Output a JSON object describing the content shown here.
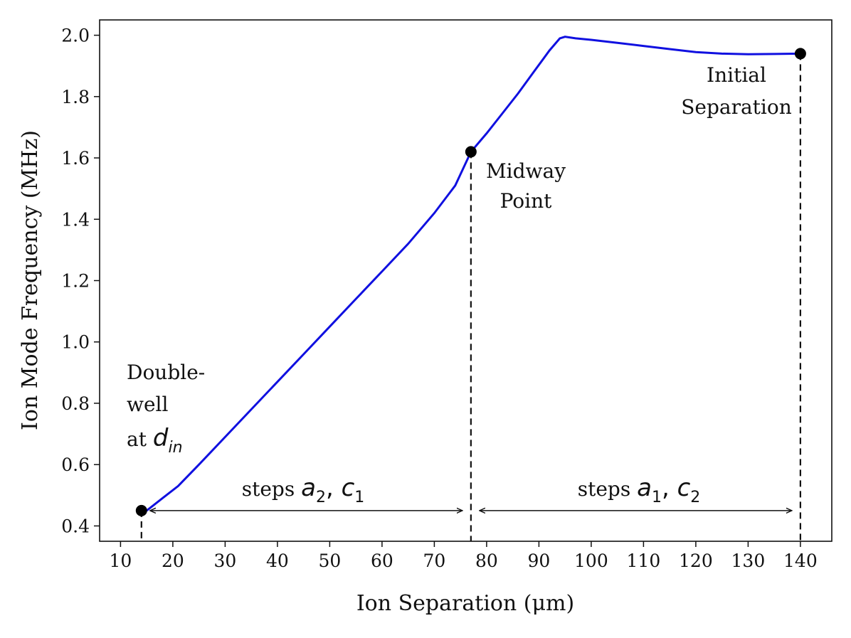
{
  "chart_data": {
    "type": "line",
    "title": "",
    "xlabel": "Ion Separation (μm)",
    "ylabel": "Ion Mode Frequency (MHz)",
    "xlim": [
      6,
      146
    ],
    "ylim": [
      0.35,
      2.05
    ],
    "xticks": [
      10,
      20,
      30,
      40,
      50,
      60,
      70,
      80,
      90,
      100,
      110,
      120,
      130,
      140
    ],
    "yticks": [
      0.4,
      0.6,
      0.8,
      1.0,
      1.2,
      1.4,
      1.6,
      1.8,
      2.0
    ],
    "ytick_labels": [
      "0.4",
      "0.6",
      "0.8",
      "1.0",
      "1.2",
      "1.4",
      "1.6",
      "1.8",
      "2.0"
    ],
    "grid": false,
    "series": [
      {
        "color": "#1010e0",
        "x": [
          15,
          18,
          21,
          25,
          30,
          35,
          40,
          45,
          50,
          55,
          60,
          65,
          70,
          74,
          77,
          80,
          83,
          86,
          89,
          92,
          94,
          95,
          97,
          100,
          105,
          110,
          115,
          120,
          125,
          130,
          135,
          140
        ],
        "y": [
          0.45,
          0.49,
          0.53,
          0.6,
          0.69,
          0.78,
          0.87,
          0.96,
          1.05,
          1.14,
          1.23,
          1.32,
          1.42,
          1.51,
          1.62,
          1.68,
          1.745,
          1.81,
          1.88,
          1.95,
          1.99,
          1.995,
          1.99,
          1.985,
          1.975,
          1.965,
          1.955,
          1.945,
          1.94,
          1.938,
          1.939,
          1.94
        ]
      }
    ],
    "markers": [
      {
        "x": 14,
        "y": 0.45
      },
      {
        "x": 77,
        "y": 1.62
      },
      {
        "x": 140,
        "y": 1.94
      }
    ],
    "annotations": {
      "initial": [
        "Initial",
        "Separation"
      ],
      "midway": [
        "Midway",
        "Point"
      ],
      "double_well": [
        "Double-",
        "well"
      ],
      "at_prefix": "at ",
      "d_symbol": "d",
      "d_sub": "in",
      "steps_left": {
        "prefix": "steps ",
        "a": "a",
        "a_sub": "2",
        "comma": ", ",
        "c": "c",
        "c_sub": "1"
      },
      "steps_right": {
        "prefix": "steps ",
        "a": "a",
        "a_sub": "1",
        "comma": ", ",
        "c": "c",
        "c_sub": "2"
      }
    }
  }
}
